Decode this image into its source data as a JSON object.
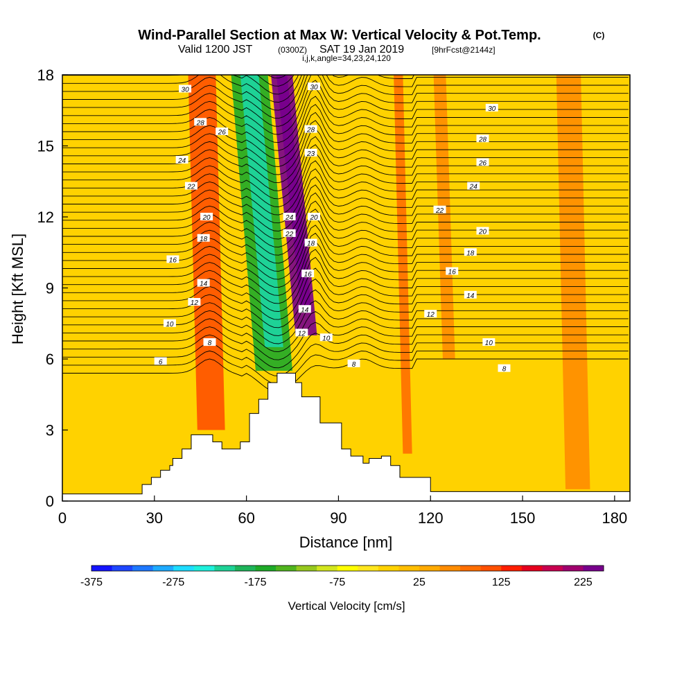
{
  "title": {
    "main": "Wind-Parallel Section at Max W: Vertical Velocity & Pot.Temp.",
    "copyright": "(C)",
    "valid_prefix": "Valid 1200 JST",
    "valid_utc": "(0300Z)",
    "valid_date": "SAT 19 Jan 2019",
    "forecast": "[9hrFcst@2144z]",
    "indices": "i,j,k,angle=34,23,24,120"
  },
  "colorbar": {
    "label": "Vertical Velocity [cm/s]",
    "colors": [
      "#1414ff",
      "#1e46ff",
      "#1e78ff",
      "#1eaaff",
      "#1edcff",
      "#1ef0dc",
      "#1ed296",
      "#1eb45a",
      "#1eaa28",
      "#50b41e",
      "#96c81e",
      "#d2e61e",
      "#ffff00",
      "#ffe61e",
      "#ffd200",
      "#ffbe00",
      "#ffaa00",
      "#ff8c00",
      "#ff6e00",
      "#ff5000",
      "#ff1e00",
      "#e6001e",
      "#c80050",
      "#a0006e",
      "#78008c"
    ],
    "tick_labels": [
      "-375",
      "-275",
      "-175",
      "-75",
      "25",
      "125",
      "225"
    ]
  },
  "chart_data": {
    "type": "heatmap",
    "title": "Wind-Parallel Section at Max W: Vertical Velocity & Pot.Temp.",
    "xlabel": "Distance [nm]",
    "ylabel": "Height [Kft MSL]",
    "xlim": [
      0,
      185
    ],
    "ylim": [
      0,
      18
    ],
    "xticks": [
      0,
      30,
      60,
      90,
      120,
      150,
      180
    ],
    "yticks": [
      0,
      3,
      6,
      9,
      12,
      15,
      18
    ],
    "fill_variable": "Vertical Velocity [cm/s]",
    "fill_range": [
      -375,
      250
    ],
    "fill_bands": [
      {
        "x": [
          0,
          185
        ],
        "w": 20,
        "note": "background"
      },
      {
        "x": [
          44,
          53
        ],
        "w": 100,
        "altitude": [
          3,
          18
        ]
      },
      {
        "x": [
          63,
          75
        ],
        "w": -170,
        "altitude": [
          5.5,
          18
        ]
      },
      {
        "x": [
          76,
          83
        ],
        "w": 230,
        "altitude": [
          7,
          18
        ]
      },
      {
        "x": [
          111,
          114
        ],
        "w": 75,
        "altitude": [
          2,
          18
        ]
      },
      {
        "x": [
          124,
          128
        ],
        "w": 70,
        "altitude": [
          6,
          18
        ]
      },
      {
        "x": [
          164,
          172
        ],
        "w": 70,
        "altitude": [
          0.5,
          18
        ]
      }
    ],
    "terrain_profile": {
      "x": [
        0,
        26,
        29,
        32,
        35,
        36,
        39,
        42,
        49,
        52,
        58,
        61,
        64,
        67,
        70,
        73,
        76,
        78,
        84,
        91,
        94,
        98,
        100,
        104,
        107,
        110,
        120,
        185
      ],
      "height": [
        0.3,
        0.7,
        1.0,
        1.3,
        1.5,
        1.8,
        2.2,
        2.8,
        2.5,
        2.2,
        2.5,
        3.7,
        4.3,
        5.0,
        5.4,
        5.4,
        5.0,
        4.4,
        3.3,
        2.2,
        1.9,
        1.6,
        1.8,
        1.9,
        1.5,
        1.0,
        0.4,
        0.4
      ]
    },
    "contour_variable": "Potential Temperature",
    "contour_labels": [
      {
        "value": "30",
        "x": 40,
        "y": 17.4
      },
      {
        "value": "28",
        "x": 45,
        "y": 16.0
      },
      {
        "value": "26",
        "x": 52,
        "y": 15.6
      },
      {
        "value": "24",
        "x": 39,
        "y": 14.4
      },
      {
        "value": "22",
        "x": 42,
        "y": 13.3
      },
      {
        "value": "20",
        "x": 47,
        "y": 12.0
      },
      {
        "value": "18",
        "x": 46,
        "y": 11.1
      },
      {
        "value": "16",
        "x": 36,
        "y": 10.2
      },
      {
        "value": "14",
        "x": 46,
        "y": 9.2
      },
      {
        "value": "12",
        "x": 43,
        "y": 8.4
      },
      {
        "value": "10",
        "x": 35,
        "y": 7.5
      },
      {
        "value": "8",
        "x": 48,
        "y": 6.7
      },
      {
        "value": "6",
        "x": 32,
        "y": 5.9
      },
      {
        "value": "24",
        "x": 74,
        "y": 12.0
      },
      {
        "value": "22",
        "x": 74,
        "y": 11.3
      },
      {
        "value": "30",
        "x": 82,
        "y": 17.5
      },
      {
        "value": "28",
        "x": 81,
        "y": 15.7
      },
      {
        "value": "23",
        "x": 81,
        "y": 14.7
      },
      {
        "value": "20",
        "x": 82,
        "y": 12.0
      },
      {
        "value": "18",
        "x": 81,
        "y": 10.9
      },
      {
        "value": "16",
        "x": 80,
        "y": 9.6
      },
      {
        "value": "14",
        "x": 79,
        "y": 8.1
      },
      {
        "value": "12",
        "x": 78,
        "y": 7.1
      },
      {
        "value": "10",
        "x": 86,
        "y": 6.9
      },
      {
        "value": "8",
        "x": 95,
        "y": 5.8
      },
      {
        "value": "30",
        "x": 140,
        "y": 16.6
      },
      {
        "value": "28",
        "x": 137,
        "y": 15.3
      },
      {
        "value": "26",
        "x": 137,
        "y": 14.3
      },
      {
        "value": "24",
        "x": 134,
        "y": 13.3
      },
      {
        "value": "22",
        "x": 123,
        "y": 12.3
      },
      {
        "value": "20",
        "x": 137,
        "y": 11.4
      },
      {
        "value": "18",
        "x": 133,
        "y": 10.5
      },
      {
        "value": "16",
        "x": 127,
        "y": 9.7
      },
      {
        "value": "14",
        "x": 133,
        "y": 8.7
      },
      {
        "value": "12",
        "x": 120,
        "y": 7.9
      },
      {
        "value": "10",
        "x": 139,
        "y": 6.7
      },
      {
        "value": "8",
        "x": 144,
        "y": 5.6
      }
    ]
  }
}
